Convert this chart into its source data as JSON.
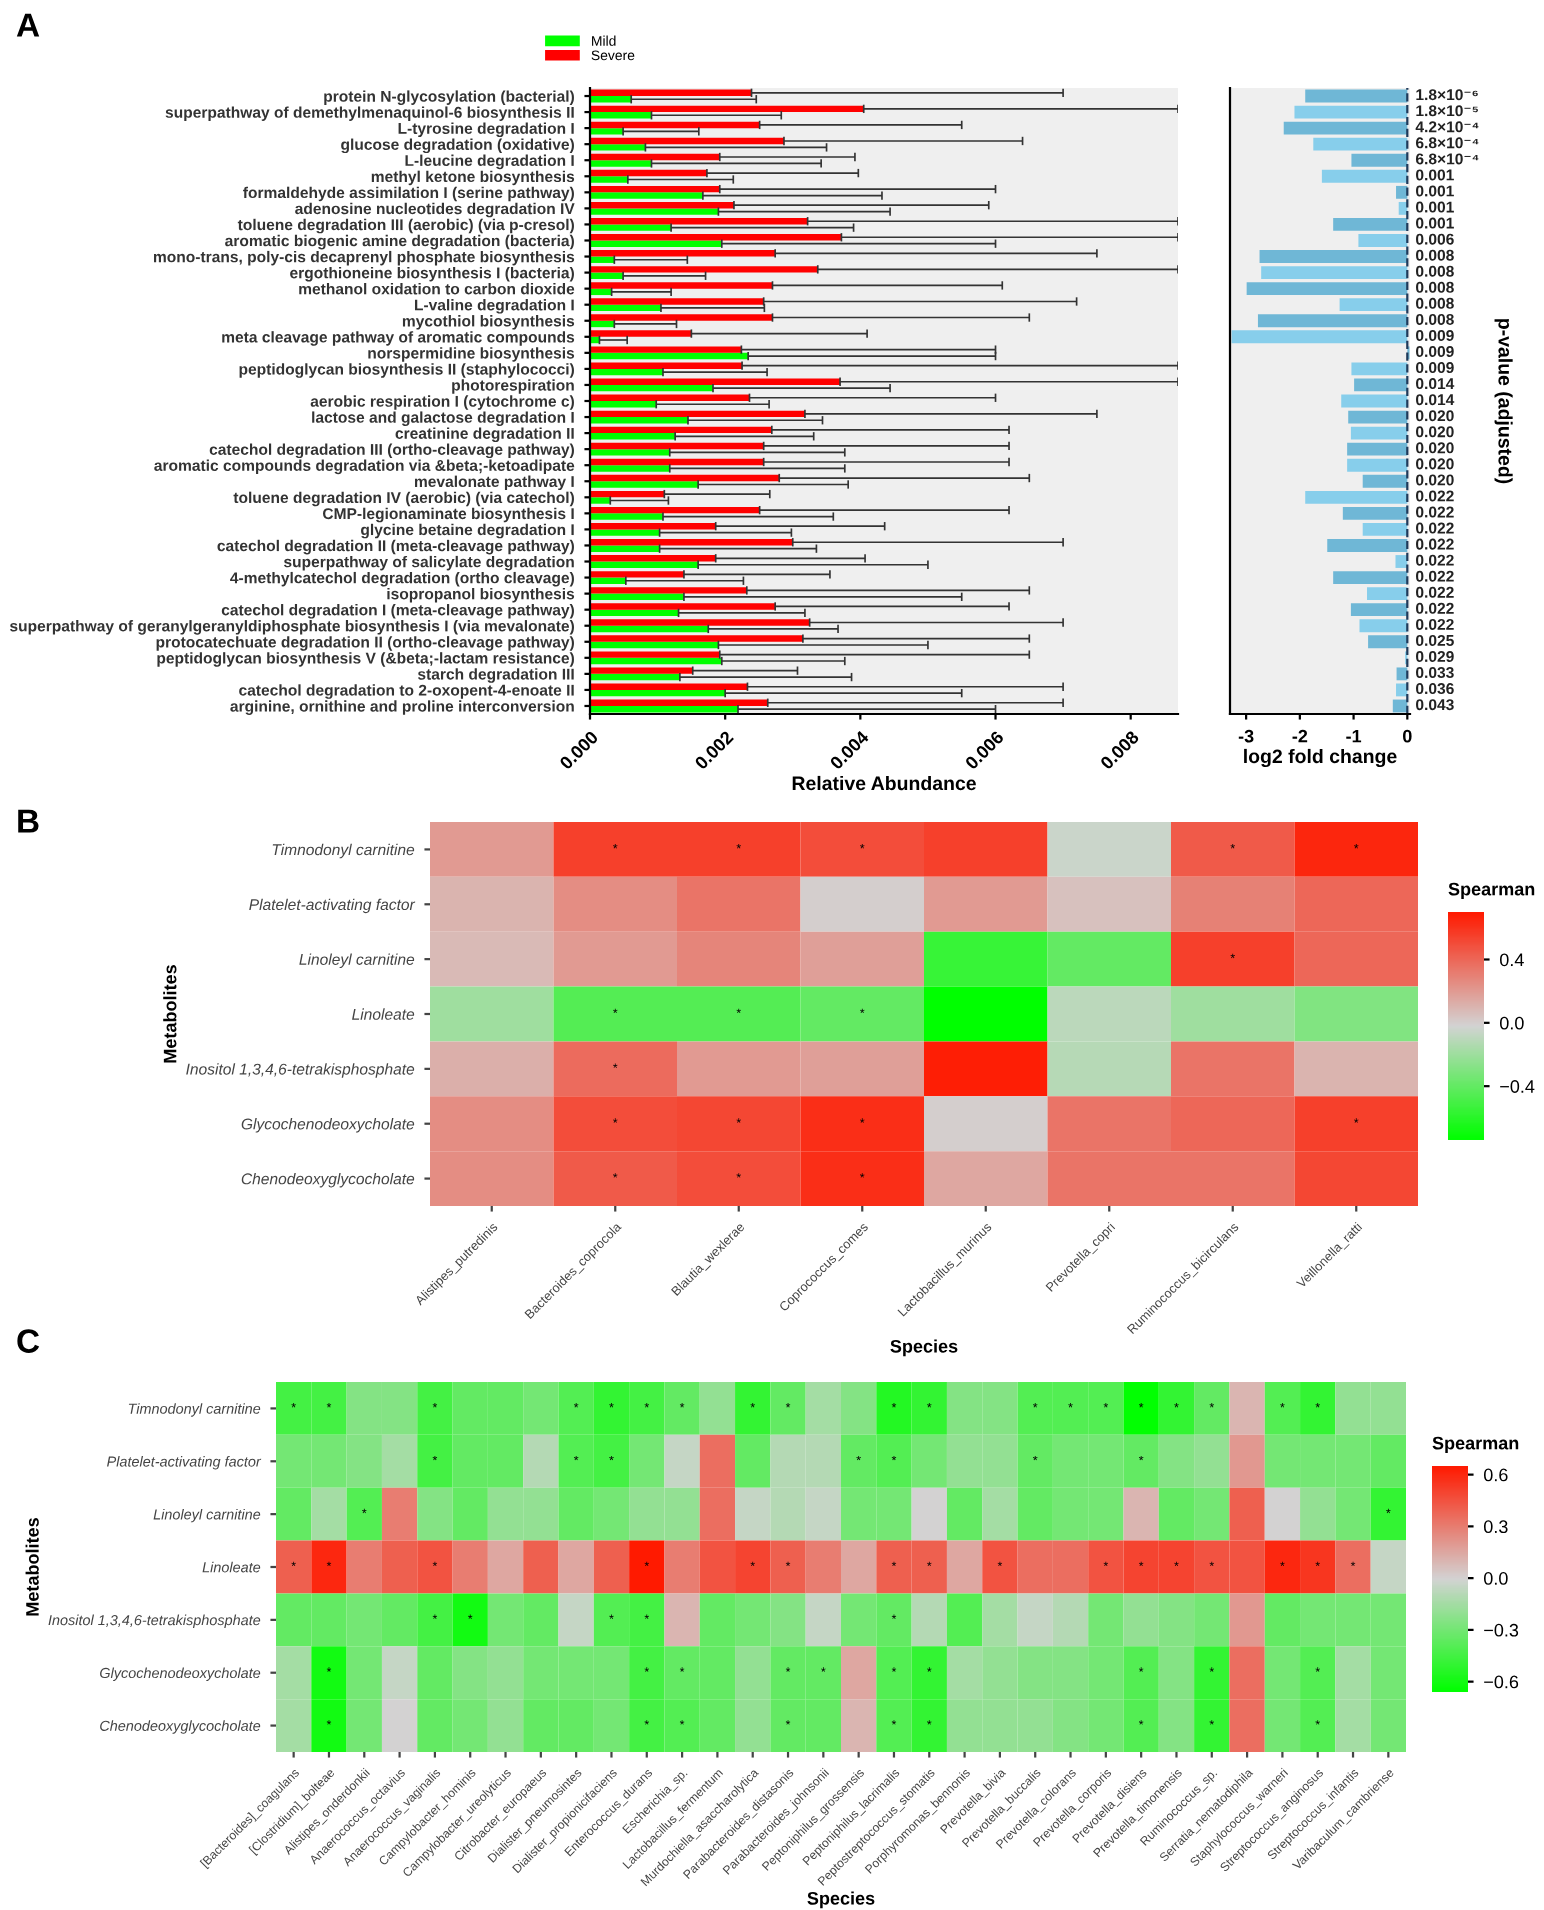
{
  "chart_data": [
    {
      "type": "bar",
      "orientation": "horizontal",
      "title": "A",
      "xlabel": "Relative Abundance",
      "categories": [
        "protein N-glycosylation (bacterial)",
        "superpathway of demethylmenaquinol-6 biosynthesis II",
        "L-tyrosine degradation I",
        "glucose degradation (oxidative)",
        "L-leucine degradation I",
        "methyl ketone biosynthesis",
        "formaldehyde assimilation I (serine pathway)",
        "adenosine nucleotides degradation IV",
        "toluene degradation III (aerobic) (via p-cresol)",
        "aromatic biogenic amine degradation (bacteria)",
        "mono-trans, poly-cis decaprenyl phosphate biosynthesis",
        "ergothioneine biosynthesis I (bacteria)",
        "methanol oxidation to carbon dioxide",
        "L-valine degradation I",
        "mycothiol biosynthesis",
        "meta cleavage pathway of aromatic compounds",
        "norspermidine biosynthesis",
        "peptidoglycan biosynthesis II (staphylococci)",
        "photorespiration",
        "aerobic respiration I (cytochrome c)",
        "lactose and galactose degradation I",
        "creatinine degradation II",
        "catechol degradation III (ortho-cleavage pathway)",
        "aromatic compounds degradation via &beta;-ketoadipate",
        "mevalonate pathway I",
        "toluene degradation IV (aerobic) (via catechol)",
        "CMP-legionaminate biosynthesis I",
        "glycine betaine degradation I",
        "catechol degradation II (meta-cleavage pathway)",
        "superpathway of salicylate degradation",
        "4-methylcatechol degradation (ortho cleavage)",
        "isopropanol biosynthesis",
        "catechol degradation I (meta-cleavage pathway)",
        "superpathway of geranylgeranyldiphosphate biosynthesis I (via mevalonate)",
        "protocatechuate degradation II (ortho-cleavage pathway)",
        "peptidoglycan biosynthesis V (&beta;-lactam resistance)",
        "starch degradation III",
        "catechol degradation to 2-oxopent-4-enoate II",
        "arginine, ornithine and proline interconversion"
      ],
      "series": [
        {
          "name": "Mild",
          "color": "#00ff00",
          "values": [
            0.00061,
            0.00091,
            0.00049,
            0.00082,
            0.00091,
            0.00056,
            0.00167,
            0.0019,
            0.0012,
            0.00195,
            0.00036,
            0.00049,
            0.00032,
            0.00105,
            0.00036,
            0.00014,
            0.00234,
            0.00108,
            0.00182,
            0.00098,
            0.00145,
            0.00126,
            0.00118,
            0.00118,
            0.0016,
            0.0003,
            0.00108,
            0.00103,
            0.00103,
            0.0016,
            0.00053,
            0.00139,
            0.00131,
            0.00175,
            0.0019,
            0.00195,
            0.00133,
            0.002,
            0.00219
          ],
          "errors": [
            [
              0.00061,
              0.00246
            ],
            [
              0.00091,
              0.00283
            ],
            [
              0.00049,
              0.00161
            ],
            [
              0.00082,
              0.0035
            ],
            [
              0.00091,
              0.00342
            ],
            [
              0.00056,
              0.00212
            ],
            [
              0.00167,
              0.00432
            ],
            [
              0.0019,
              0.00444
            ],
            [
              0.0012,
              0.0039
            ],
            [
              0.00195,
              0.006
            ],
            [
              0.00036,
              0.00144
            ],
            [
              0.00049,
              0.00171
            ],
            [
              0.00032,
              0.0012
            ],
            [
              0.00105,
              0.00258
            ],
            [
              0.00036,
              0.00128
            ],
            [
              0.00014,
              0.00055
            ],
            [
              0.00234,
              0.006
            ],
            [
              0.00108,
              0.00262
            ],
            [
              0.00182,
              0.00444
            ],
            [
              0.00098,
              0.00265
            ],
            [
              0.00145,
              0.00344
            ],
            [
              0.00126,
              0.00331
            ],
            [
              0.00118,
              0.00377
            ],
            [
              0.00118,
              0.00377
            ],
            [
              0.0016,
              0.00382
            ],
            [
              0.0003,
              0.00116
            ],
            [
              0.00108,
              0.0036
            ],
            [
              0.00103,
              0.00298
            ],
            [
              0.00103,
              0.00335
            ],
            [
              0.0016,
              0.005
            ],
            [
              0.00053,
              0.00227
            ],
            [
              0.00139,
              0.0055
            ],
            [
              0.00131,
              0.00318
            ],
            [
              0.00175,
              0.00367
            ],
            [
              0.0019,
              0.005
            ],
            [
              0.00195,
              0.00377
            ],
            [
              0.00133,
              0.00387
            ],
            [
              0.002,
              0.0055
            ],
            [
              0.00219,
              0.006
            ]
          ]
        },
        {
          "name": "Severe",
          "color": "#ff0000",
          "values": [
            0.00239,
            0.00405,
            0.00251,
            0.00287,
            0.00192,
            0.00173,
            0.00192,
            0.00213,
            0.00322,
            0.00372,
            0.00274,
            0.00337,
            0.0027,
            0.00257,
            0.0027,
            0.0015,
            0.00224,
            0.00225,
            0.0037,
            0.00236,
            0.00318,
            0.00269,
            0.00257,
            0.00257,
            0.0028,
            0.0011,
            0.00251,
            0.00186,
            0.003,
            0.00186,
            0.00139,
            0.00232,
            0.00274,
            0.00325,
            0.00315,
            0.00192,
            0.00152,
            0.00233,
            0.00263
          ],
          "errors": [
            [
              0.00239,
              0.007
            ],
            [
              0.00405,
              0.0087
            ],
            [
              0.00251,
              0.0055
            ],
            [
              0.00287,
              0.0064
            ],
            [
              0.00192,
              0.00392
            ],
            [
              0.00173,
              0.00397
            ],
            [
              0.00192,
              0.006
            ],
            [
              0.00213,
              0.0059
            ],
            [
              0.00322,
              0.0087
            ],
            [
              0.00372,
              0.0087
            ],
            [
              0.00274,
              0.0075
            ],
            [
              0.00337,
              0.0087
            ],
            [
              0.0027,
              0.0061
            ],
            [
              0.00257,
              0.0072
            ],
            [
              0.0027,
              0.0065
            ],
            [
              0.0015,
              0.0041
            ],
            [
              0.00224,
              0.006
            ],
            [
              0.00225,
              0.0087
            ],
            [
              0.0037,
              0.0087
            ],
            [
              0.00236,
              0.006
            ],
            [
              0.00318,
              0.0075
            ],
            [
              0.00269,
              0.0062
            ],
            [
              0.00257,
              0.0062
            ],
            [
              0.00257,
              0.0062
            ],
            [
              0.0028,
              0.0065
            ],
            [
              0.0011,
              0.00266
            ],
            [
              0.00251,
              0.0062
            ],
            [
              0.00186,
              0.00436
            ],
            [
              0.003,
              0.007
            ],
            [
              0.00186,
              0.00407
            ],
            [
              0.00139,
              0.00355
            ],
            [
              0.00232,
              0.0065
            ],
            [
              0.00274,
              0.0062
            ],
            [
              0.00325,
              0.007
            ],
            [
              0.00315,
              0.0065
            ],
            [
              0.00192,
              0.0065
            ],
            [
              0.00152,
              0.00307
            ],
            [
              0.00233,
              0.007
            ],
            [
              0.00263,
              0.007
            ]
          ]
        }
      ],
      "xlim": [
        0,
        0.0087
      ],
      "xticks": [
        {
          "value": 0,
          "label": "0.000"
        },
        {
          "value": 0.002,
          "label": "0.002"
        },
        {
          "value": 0.004,
          "label": "0.004"
        },
        {
          "value": 0.006,
          "label": "0.006"
        },
        {
          "value": 0.008,
          "label": "0.008"
        }
      ],
      "legend": "top"
    },
    {
      "type": "bar",
      "orientation": "horizontal",
      "xlabel": "log2 fold change",
      "y2label": "p-value (adjusted)",
      "tick_labels": "x",
      "categories": [
        null,
        null,
        null,
        null,
        null,
        null,
        null,
        null,
        null,
        null,
        null,
        null,
        null,
        null,
        null,
        null,
        null,
        null,
        null,
        null,
        null,
        null,
        null,
        null,
        null,
        null,
        null,
        null,
        null,
        null,
        null,
        null,
        null,
        null,
        null,
        null,
        null,
        null,
        null
      ],
      "values": [
        -1.9,
        -2.1,
        -2.3,
        -1.75,
        -1.04,
        -1.59,
        -0.21,
        -0.16,
        -1.38,
        -0.91,
        -2.75,
        -2.72,
        -2.99,
        -1.26,
        -2.78,
        -3.27,
        0.04,
        -1.04,
        -0.99,
        -1.23,
        -1.1,
        -1.05,
        -1.12,
        -1.12,
        -0.83,
        -1.9,
        -1.2,
        -0.83,
        -1.49,
        -0.22,
        -1.38,
        -0.75,
        -1.05,
        -0.89,
        -0.73,
        -0.04,
        -0.2,
        -0.21,
        -0.27
      ],
      "colors": [
        "#6fb7d6",
        "#87ceeb",
        "#6fb7d6",
        "#87ceeb",
        "#6fb7d6",
        "#87ceeb",
        "#6fb7d6",
        "#87ceeb",
        "#6fb7d6",
        "#87ceeb",
        "#6fb7d6",
        "#87ceeb",
        "#6fb7d6",
        "#87ceeb",
        "#6fb7d6",
        "#87ceeb",
        "#6fb7d6",
        "#87ceeb",
        "#6fb7d6",
        "#87ceeb",
        "#6fb7d6",
        "#87ceeb",
        "#6fb7d6",
        "#87ceeb",
        "#6fb7d6",
        "#87ceeb",
        "#6fb7d6",
        "#87ceeb",
        "#6fb7d6",
        "#87ceeb",
        "#6fb7d6",
        "#87ceeb",
        "#6fb7d6",
        "#87ceeb",
        "#6fb7d6",
        "#87ceeb",
        "#6fb7d6",
        "#87ceeb",
        "#6fb7d6"
      ],
      "xlim": [
        -3.3,
        0.05
      ],
      "xticks": [
        -3,
        -2,
        -1,
        0
      ],
      "ref_lines": [
        {
          "axis": "x",
          "value": 0,
          "line_style": "dashed",
          "color": "#1f3a5a"
        }
      ],
      "annotations": [
        "1.8×10⁻⁶",
        "1.8×10⁻⁵",
        "4.2×10⁻⁴",
        "6.8×10⁻⁴",
        "6.8×10⁻⁴",
        "0.001",
        "0.001",
        "0.001",
        "0.001",
        "0.006",
        "0.008",
        "0.008",
        "0.008",
        "0.008",
        "0.008",
        "0.009",
        "0.009",
        "0.009",
        "0.014",
        "0.014",
        "0.020",
        "0.020",
        "0.020",
        "0.020",
        "0.020",
        "0.022",
        "0.022",
        "0.022",
        "0.022",
        "0.022",
        "0.022",
        "0.022",
        "0.022",
        "0.022",
        "0.025",
        "0.029",
        "0.033",
        "0.036",
        "0.043"
      ]
    },
    {
      "type": "heatmap",
      "title": "B",
      "xlabel": "Species",
      "ylabel": "Metabolites",
      "clabel": "Spearman",
      "categories": [
        "Alistipes_putredinis",
        "Bacteroides_coprocola",
        "Blautia_wexlerae",
        "Coprococcus_comes",
        "Lactobacillus_murinus",
        "Prevotella_copri",
        "Ruminococcus_bicirculans",
        "Veillonella_ratti"
      ],
      "y_categories": [
        "Timnodonyl carnitine",
        "Platelet-activating factor",
        "Linoleyl carnitine",
        "Linoleate",
        "Inositol 1,3,4,6-tetrakisphosphate",
        "Glycochenodeoxycholate",
        "Chenodeoxyglycocholate"
      ],
      "cells": [
        [
          0.2,
          0.55,
          0.55,
          0.5,
          0.55,
          -0.05,
          0.45,
          0.65
        ],
        [
          0.1,
          0.25,
          0.35,
          0.0,
          0.2,
          0.05,
          0.3,
          0.4
        ],
        [
          0.08,
          0.2,
          0.28,
          0.18,
          -0.55,
          -0.4,
          0.55,
          0.4
        ],
        [
          -0.2,
          -0.45,
          -0.45,
          -0.4,
          -0.74,
          -0.1,
          -0.2,
          -0.3
        ],
        [
          0.12,
          0.38,
          0.2,
          0.18,
          0.68,
          -0.12,
          0.35,
          0.1
        ],
        [
          0.25,
          0.5,
          0.52,
          0.62,
          0.0,
          0.35,
          0.4,
          0.55
        ],
        [
          0.25,
          0.45,
          0.5,
          0.62,
          0.15,
          0.35,
          0.35,
          0.52
        ]
      ],
      "cell_labels": [
        [
          null,
          "*",
          "*",
          "*",
          null,
          null,
          "*",
          "*"
        ],
        [
          null,
          null,
          null,
          null,
          null,
          null,
          null,
          null
        ],
        [
          null,
          null,
          null,
          null,
          null,
          null,
          "*",
          null
        ],
        [
          null,
          "*",
          "*",
          "*",
          null,
          null,
          null,
          null
        ],
        [
          null,
          "*",
          null,
          null,
          null,
          null,
          null,
          null
        ],
        [
          null,
          "*",
          "*",
          "*",
          null,
          null,
          null,
          "*"
        ],
        [
          null,
          "*",
          "*",
          "*",
          null,
          null,
          null,
          null
        ]
      ],
      "clim": [
        -0.74,
        0.7
      ],
      "cticks": [
        {
          "value": -0.4,
          "label": "−0.4"
        },
        {
          "value": 0,
          "label": "0.0"
        },
        0.4
      ]
    },
    {
      "type": "heatmap",
      "title": "C",
      "xlabel": "Species",
      "ylabel": "Metabolites",
      "clabel": "Spearman",
      "categories": [
        "[Bacteroides]_coagulans",
        "[Clostridium]_bolteae",
        "Alistipes_onderdonkii",
        "Anaerococcus_octavius",
        "Anaerococcus_vaginalis",
        "Campylobacter_hominis",
        "Campylobacter_ureolyticus",
        "Citrobacter_europaeus",
        "Dialister_pneumosintes",
        "Dialister_propionicifaciens",
        "Enterococcus_durans",
        "Escherichia_sp.",
        "Lactobacillus_fermentum",
        "Murdochiella_asaccharolytica",
        "Parabacteroides_distasonis",
        "Parabacteroides_johnsonii",
        "Peptoniphilus_grossensis",
        "Peptoniphilus_lacrimalis",
        "Peptostreptococcus_stomatis",
        "Porphyromonas_bennonis",
        "Prevotella_bivia",
        "Prevotella_buccalis",
        "Prevotella_colorans",
        "Prevotella_corporis",
        "Prevotella_disiens",
        "Prevotella_timonensis",
        "Ruminococcus_sp.",
        "Serratia_nematodiphila",
        "Staphylococcus_warneri",
        "Streptococcus_anginosus",
        "Streptococcus_infantis",
        "Varibaculum_cambriense"
      ],
      "y_categories": [
        "Timnodonyl carnitine",
        "Platelet-activating factor",
        "Linoleyl carnitine",
        "Linoleate",
        "Inositol 1,3,4,6-tetrakisphosphate",
        "Glycochenodeoxycholate",
        "Chenodeoxyglycocholate"
      ],
      "cells": [
        [
          -0.45,
          -0.45,
          -0.25,
          -0.25,
          -0.45,
          -0.35,
          -0.35,
          -0.3,
          -0.4,
          -0.5,
          -0.45,
          -0.35,
          -0.2,
          -0.5,
          -0.35,
          -0.15,
          -0.25,
          -0.55,
          -0.5,
          -0.25,
          -0.25,
          -0.4,
          -0.4,
          -0.4,
          -0.65,
          -0.5,
          -0.35,
          0.1,
          -0.4,
          -0.5,
          -0.2,
          -0.2
        ],
        [
          -0.3,
          -0.3,
          -0.25,
          -0.15,
          -0.45,
          -0.35,
          -0.35,
          -0.1,
          -0.4,
          -0.45,
          -0.3,
          -0.05,
          0.35,
          -0.35,
          -0.1,
          -0.1,
          -0.35,
          -0.4,
          -0.3,
          -0.2,
          -0.2,
          -0.35,
          -0.3,
          -0.3,
          -0.35,
          -0.25,
          -0.2,
          0.2,
          -0.3,
          -0.3,
          -0.3,
          -0.35
        ],
        [
          -0.35,
          -0.15,
          -0.4,
          0.3,
          -0.25,
          -0.35,
          -0.2,
          -0.2,
          -0.35,
          -0.3,
          -0.2,
          -0.2,
          0.35,
          -0.05,
          -0.1,
          -0.05,
          -0.3,
          -0.3,
          0.0,
          -0.35,
          -0.15,
          -0.35,
          -0.3,
          -0.3,
          0.1,
          -0.35,
          -0.3,
          0.4,
          0.0,
          -0.2,
          -0.3,
          -0.5
        ],
        [
          0.4,
          0.6,
          0.3,
          0.4,
          0.45,
          0.3,
          0.15,
          0.4,
          0.15,
          0.4,
          0.65,
          0.3,
          0.45,
          0.5,
          0.4,
          0.3,
          0.15,
          0.4,
          0.4,
          0.15,
          0.45,
          0.35,
          0.35,
          0.45,
          0.5,
          0.5,
          0.45,
          0.45,
          0.6,
          0.55,
          0.35,
          -0.05
        ],
        [
          -0.35,
          -0.35,
          -0.3,
          -0.35,
          -0.45,
          -0.6,
          -0.3,
          -0.35,
          -0.05,
          -0.4,
          -0.45,
          0.1,
          -0.35,
          -0.3,
          -0.25,
          -0.05,
          -0.3,
          -0.35,
          -0.1,
          -0.4,
          -0.15,
          -0.05,
          -0.1,
          -0.3,
          -0.2,
          -0.25,
          -0.3,
          0.2,
          -0.35,
          -0.3,
          -0.3,
          -0.3
        ],
        [
          -0.15,
          -0.6,
          -0.3,
          -0.05,
          -0.35,
          -0.25,
          -0.2,
          -0.3,
          -0.3,
          -0.3,
          -0.45,
          -0.35,
          -0.35,
          -0.2,
          -0.35,
          -0.35,
          0.15,
          -0.4,
          -0.5,
          -0.15,
          -0.2,
          -0.25,
          -0.25,
          -0.3,
          -0.4,
          -0.25,
          -0.5,
          0.35,
          -0.3,
          -0.4,
          -0.15,
          -0.3
        ],
        [
          -0.15,
          -0.6,
          -0.3,
          0.0,
          -0.35,
          -0.3,
          -0.2,
          -0.35,
          -0.35,
          -0.3,
          -0.45,
          -0.4,
          -0.35,
          -0.2,
          -0.35,
          -0.35,
          0.1,
          -0.4,
          -0.5,
          -0.2,
          -0.2,
          -0.2,
          -0.25,
          -0.3,
          -0.4,
          -0.25,
          -0.5,
          0.35,
          -0.3,
          -0.4,
          -0.15,
          -0.3
        ]
      ],
      "cell_labels": [
        [
          "*",
          "*",
          null,
          null,
          "*",
          null,
          null,
          null,
          "*",
          "*",
          "*",
          "*",
          null,
          "*",
          "*",
          null,
          null,
          "*",
          "*",
          null,
          null,
          "*",
          "*",
          "*",
          "*",
          "*",
          "*",
          null,
          "*",
          "*",
          null,
          null
        ],
        [
          null,
          null,
          null,
          null,
          "*",
          null,
          null,
          null,
          "*",
          "*",
          null,
          null,
          null,
          null,
          null,
          null,
          "*",
          "*",
          null,
          null,
          null,
          "*",
          null,
          null,
          "*",
          null,
          null,
          null,
          null,
          null,
          null,
          null
        ],
        [
          null,
          null,
          "*",
          null,
          null,
          null,
          null,
          null,
          null,
          null,
          null,
          null,
          null,
          null,
          null,
          null,
          null,
          null,
          null,
          null,
          null,
          null,
          null,
          null,
          null,
          null,
          null,
          null,
          null,
          null,
          null,
          "*"
        ],
        [
          "*",
          "*",
          null,
          null,
          "*",
          null,
          null,
          null,
          null,
          null,
          "*",
          null,
          null,
          "*",
          "*",
          null,
          null,
          "*",
          "*",
          null,
          "*",
          null,
          null,
          "*",
          "*",
          "*",
          "*",
          null,
          "*",
          "*",
          "*",
          null
        ],
        [
          null,
          null,
          null,
          null,
          "*",
          "*",
          null,
          null,
          null,
          "*",
          "*",
          null,
          null,
          null,
          null,
          null,
          null,
          "*",
          null,
          null,
          null,
          null,
          null,
          null,
          null,
          null,
          null,
          null,
          null,
          null,
          null,
          null
        ],
        [
          null,
          "*",
          null,
          null,
          null,
          null,
          null,
          null,
          null,
          null,
          "*",
          "*",
          null,
          null,
          "*",
          "*",
          null,
          "*",
          "*",
          null,
          null,
          null,
          null,
          null,
          "*",
          null,
          "*",
          null,
          null,
          "*",
          null,
          null
        ],
        [
          null,
          "*",
          null,
          null,
          null,
          null,
          null,
          null,
          null,
          null,
          "*",
          "*",
          null,
          null,
          "*",
          null,
          null,
          "*",
          "*",
          null,
          null,
          null,
          null,
          null,
          "*",
          null,
          "*",
          null,
          null,
          "*",
          null,
          null
        ]
      ],
      "clim": [
        -0.66,
        0.65
      ],
      "cticks": [
        {
          "value": -0.6,
          "label": "−0.6"
        },
        {
          "value": -0.3,
          "label": "−0.3"
        },
        {
          "value": 0,
          "label": "0.0"
        },
        0.3,
        0.6
      ]
    }
  ]
}
